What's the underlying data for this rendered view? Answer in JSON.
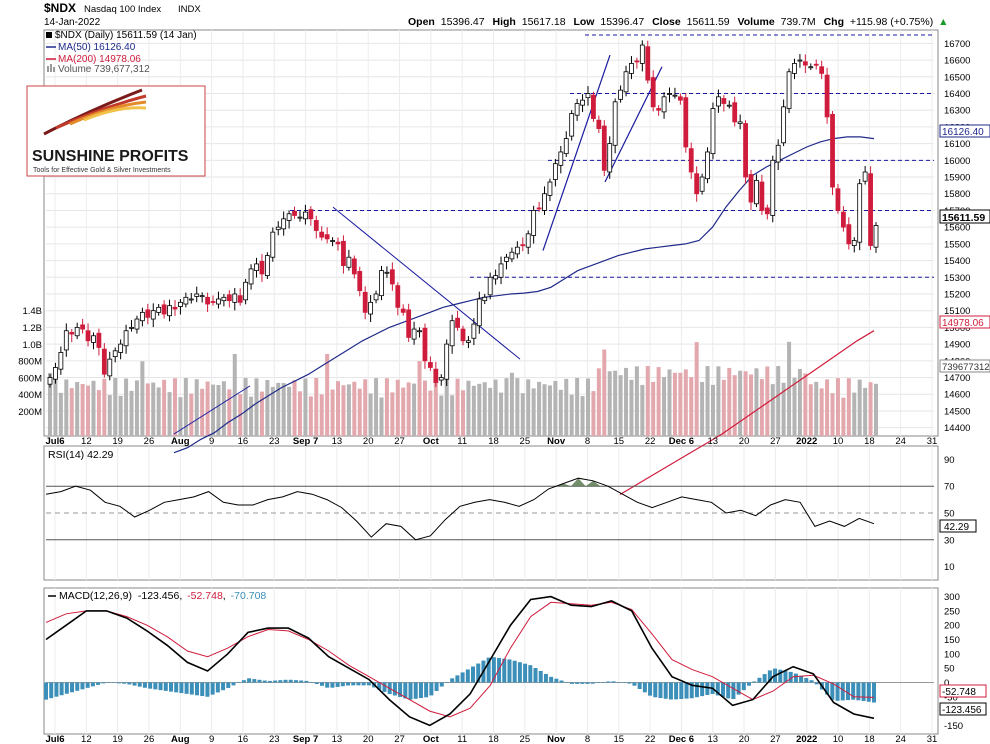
{
  "header": {
    "symbol": "$NDX",
    "name": "Nasdaq 100 Index",
    "exchange": "INDX",
    "date": "14-Jan-2022",
    "open_label": "Open",
    "open": "15396.47",
    "high_label": "High",
    "high": "15617.18",
    "low_label": "Low",
    "low": "15396.47",
    "close_label": "Close",
    "close": "15611.59",
    "volume_label": "Volume",
    "volume": "739.7M",
    "chg_label": "Chg",
    "chg": "+115.98 (+0.75%)",
    "arrow": "▲"
  },
  "legend": {
    "ticker": "$NDX (Daily) 15611.59 (14 Jan)",
    "ma50": "MA(50) 16126.40",
    "ma200": "MA(200) 14978.06",
    "volume": "Volume 739,677,312"
  },
  "logo": {
    "title": "SUNSHINE PROFITS",
    "tagline": "Tools for Effective Gold & Silver Investments"
  },
  "tags": {
    "ma50": "16126.40",
    "price": "15611.59",
    "ma200": "14978.06",
    "volume": "739677312",
    "rsi": "42.29",
    "macd_signal": "-52.748",
    "macd": "-123.456"
  },
  "rsi_title": "RSI(14) 42.29",
  "macd_title": {
    "prefix": "MACD(12,26,9)",
    "macd": "-123.456",
    "signal": "-52.748",
    "hist": "-70.708"
  },
  "colors": {
    "up": "#ffffff",
    "down": "#d01c3c",
    "ma50": "#1f2a8a",
    "ma200": "#d01c3c",
    "vol_up": "#b4b4b4",
    "vol_down": "#e3a8ad",
    "macd_hist": "#3b8fb8",
    "rsi_fill": "#5a7a50"
  },
  "chart_data": [
    {
      "type": "candlestick",
      "title": "$NDX Nasdaq 100 Index (Daily)",
      "x_axis_labels": [
        "Jul6",
        "12",
        "19",
        "26",
        "Aug",
        "9",
        "16",
        "23",
        "Sep 7",
        "13",
        "20",
        "27",
        "Oct",
        "11",
        "18",
        "25",
        "Nov",
        "8",
        "15",
        "22",
        "Dec 6",
        "13",
        "20",
        "27",
        "2022",
        "10",
        "18",
        "24",
        "31"
      ],
      "y_ticks": [
        14400,
        14500,
        14600,
        14700,
        14800,
        14900,
        15000,
        15100,
        15200,
        15300,
        15400,
        15500,
        15600,
        15700,
        15800,
        15900,
        16000,
        16100,
        16200,
        16300,
        16400,
        16500,
        16600,
        16700
      ],
      "ylim": [
        14350,
        16780
      ],
      "horizontal_levels": [
        16750,
        16400,
        16000,
        15700,
        15300
      ],
      "ohlc_closes": [
        14700,
        14760,
        14850,
        14980,
        14960,
        15000,
        14990,
        14920,
        14950,
        14880,
        14720,
        14810,
        14860,
        14900,
        14980,
        15000,
        15050,
        15090,
        15060,
        15100,
        15120,
        15080,
        15130,
        15110,
        15150,
        15180,
        15170,
        15200,
        15190,
        15140,
        15150,
        15170,
        15180,
        15160,
        15200,
        15150,
        15270,
        15350,
        15380,
        15320,
        15430,
        15570,
        15600,
        15650,
        15680,
        15670,
        15660,
        15690,
        15650,
        15580,
        15540,
        15530,
        15520,
        15500,
        15370,
        15420,
        15320,
        15220,
        15090,
        15150,
        15200,
        15340,
        15330,
        15260,
        15120,
        15090,
        14940,
        14990,
        14980,
        14800,
        14760,
        14670,
        14700,
        14900,
        15040,
        15000,
        14920,
        14920,
        15020,
        15170,
        15180,
        15300,
        15310,
        15380,
        15420,
        15450,
        15480,
        15490,
        15560,
        15700,
        15710,
        15800,
        15870,
        15980,
        16050,
        16130,
        16280,
        16340,
        16360,
        16400,
        16250,
        16190,
        15940,
        16100,
        16350,
        16420,
        16530,
        16580,
        16590,
        16690,
        16480,
        16320,
        16300,
        16380,
        16400,
        16390,
        16360,
        16080,
        15930,
        15800,
        15900,
        16050,
        16310,
        16380,
        16340,
        16330,
        16230,
        16230,
        15900,
        15750,
        15880,
        15700,
        15680,
        16000,
        16090,
        16320,
        16530,
        16580,
        16600,
        16570,
        16560,
        16570,
        16520,
        16260,
        15840,
        15700,
        15600,
        15500,
        15520,
        15860,
        15930,
        15490,
        15610
      ],
      "ma50": [
        14250,
        14280,
        14330,
        14370,
        14430,
        14480,
        14540,
        14590,
        14640,
        14680,
        14720,
        14770,
        14820,
        14870,
        14920,
        14960,
        15000,
        15030,
        15060,
        15090,
        15120,
        15140,
        15160,
        15180,
        15190,
        15200,
        15205,
        15215,
        15240,
        15290,
        15340,
        15370,
        15400,
        15430,
        15450,
        15470,
        15480,
        15490,
        15500,
        15520,
        15600,
        15720,
        15820,
        15910,
        15960,
        16000,
        16040,
        16080,
        16110,
        16130,
        16140,
        16140,
        16130
      ],
      "ma200": [
        14000,
        14060,
        14120,
        14180,
        14240,
        14300,
        14360,
        14430,
        14500,
        14570,
        14640,
        14710,
        14780,
        14850,
        14920,
        14980
      ],
      "rsi": {
        "ylim": [
          0,
          100
        ],
        "ticks": [
          10,
          30,
          50,
          70,
          90
        ],
        "levels": [
          70,
          30
        ],
        "values": [
          64,
          66,
          70,
          67,
          58,
          55,
          47,
          52,
          58,
          60,
          62,
          66,
          58,
          56,
          56,
          60,
          62,
          66,
          64,
          60,
          54,
          44,
          32,
          42,
          40,
          30,
          33,
          45,
          55,
          58,
          60,
          58,
          55,
          60,
          68,
          72,
          76,
          74,
          70,
          64,
          58,
          54,
          58,
          62,
          60,
          58,
          50,
          52,
          48,
          56,
          60,
          58,
          40,
          44,
          40,
          46,
          42
        ]
      },
      "macd": {
        "ylim": [
          -180,
          330
        ],
        "ticks": [
          -150,
          -100,
          -50,
          0,
          50,
          100,
          150,
          200,
          250,
          300
        ],
        "macd": [
          150,
          200,
          250,
          250,
          225,
          180,
          130,
          70,
          40,
          100,
          175,
          190,
          190,
          155,
          90,
          50,
          10,
          -60,
          -120,
          -150,
          -110,
          -40,
          80,
          200,
          290,
          300,
          270,
          265,
          285,
          250,
          120,
          20,
          -10,
          -20,
          -80,
          -60,
          20,
          55,
          30,
          -70,
          -110,
          -125
        ],
        "signal": [
          210,
          240,
          250,
          250,
          230,
          200,
          160,
          110,
          90,
          120,
          160,
          185,
          180,
          150,
          110,
          60,
          20,
          -20,
          -60,
          -100,
          -120,
          -90,
          -10,
          120,
          230,
          280,
          275,
          270,
          280,
          255,
          170,
          80,
          45,
          20,
          -20,
          -60,
          -30,
          20,
          25,
          -5,
          -50,
          -52
        ],
        "hist": [
          -60,
          -40,
          -20,
          0,
          -5,
          -20,
          -30,
          -40,
          -50,
          -20,
          15,
          5,
          10,
          5,
          -20,
          -10,
          -10,
          -40,
          -60,
          -50,
          10,
          50,
          90,
          80,
          60,
          20,
          -5,
          -5,
          5,
          -5,
          -50,
          -60,
          -55,
          -40,
          -60,
          0,
          50,
          35,
          5,
          -65,
          -60,
          -70
        ]
      }
    }
  ]
}
